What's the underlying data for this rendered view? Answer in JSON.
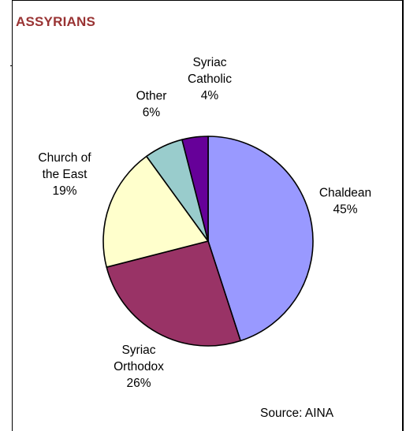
{
  "chart_data": {
    "type": "pie",
    "title": "ASSYRIANS",
    "title_color": "#993333",
    "source": "Source: AINA",
    "slices": [
      {
        "name": "Chaldean",
        "value": 45,
        "percent_label": "45%",
        "color": "#9999ff",
        "label_lines": [
          "Chaldean",
          "45%"
        ]
      },
      {
        "name": "Syriac Orthodox",
        "value": 26,
        "percent_label": "26%",
        "color": "#993366",
        "label_lines": [
          "Syriac",
          "Orthodox",
          "26%"
        ]
      },
      {
        "name": "Church of the East",
        "value": 19,
        "percent_label": "19%",
        "color": "#ffffcc",
        "label_lines": [
          "Church of",
          "the East",
          "19%"
        ]
      },
      {
        "name": "Other",
        "value": 6,
        "percent_label": "6%",
        "color": "#99cccc",
        "label_lines": [
          "Other",
          "6%"
        ]
      },
      {
        "name": "Syriac Catholic",
        "value": 4,
        "percent_label": "4%",
        "color": "#660099",
        "label_lines": [
          "Syriac",
          "Catholic",
          "4%"
        ]
      }
    ]
  }
}
